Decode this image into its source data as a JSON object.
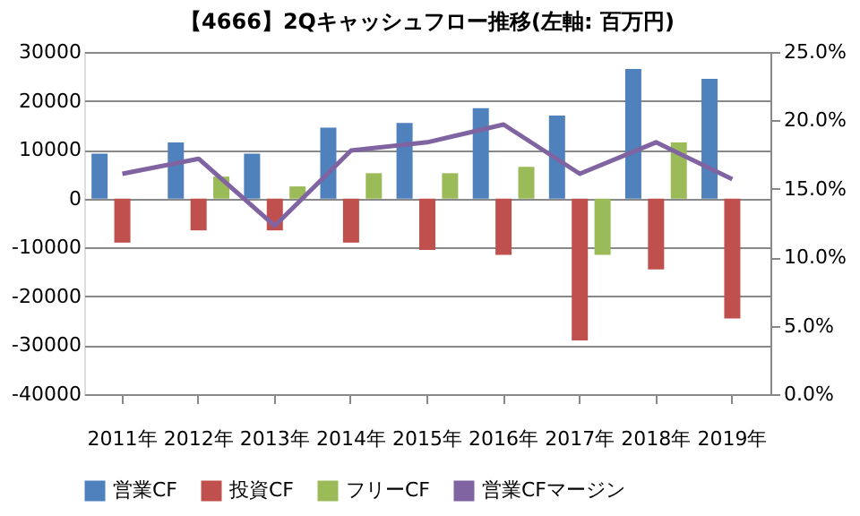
{
  "chart_data": {
    "type": "bar",
    "title": "【4666】2Qキャッシュフロー推移(左軸: 百万円)",
    "categories": [
      "2011年",
      "2012年",
      "2013年",
      "2014年",
      "2015年",
      "2016年",
      "2017年",
      "2018年",
      "2019年"
    ],
    "series": [
      {
        "name": "営業CF",
        "color": "#4f81bd",
        "values": [
          9200,
          11500,
          9200,
          14500,
          15500,
          18500,
          17000,
          26500,
          24500
        ]
      },
      {
        "name": "投資CF",
        "color": "#c0504d",
        "values": [
          -9000,
          -6500,
          -6500,
          -9000,
          -10500,
          -11500,
          -29000,
          -14500,
          -24500
        ]
      },
      {
        "name": "フリーCF",
        "color": "#9bbb59",
        "values": [
          null,
          4500,
          2500,
          5200,
          5200,
          6500,
          -11500,
          11500,
          0
        ]
      },
      {
        "name": "営業CFマージン",
        "type": "line",
        "axis": "y2",
        "color": "#8064a2",
        "values": [
          16.1,
          17.2,
          12.3,
          17.8,
          18.4,
          19.7,
          16.1,
          18.4,
          15.7
        ]
      }
    ],
    "ylim": [
      -40000,
      30000
    ],
    "yticks": [
      -40000,
      -30000,
      -20000,
      -10000,
      0,
      10000,
      20000,
      30000
    ],
    "y2lim": [
      0,
      25
    ],
    "y2ticks": [
      {
        "value": 0,
        "label": "0.0%"
      },
      {
        "value": 5,
        "label": "5.0%"
      },
      {
        "value": 10,
        "label": "10.0%"
      },
      {
        "value": 15,
        "label": "15.0%"
      },
      {
        "value": 20,
        "label": "20.0%"
      },
      {
        "value": 25,
        "label": "25.0%"
      }
    ],
    "grid": "y",
    "legend": "bottom",
    "marker": "none",
    "line_style": "solid"
  }
}
